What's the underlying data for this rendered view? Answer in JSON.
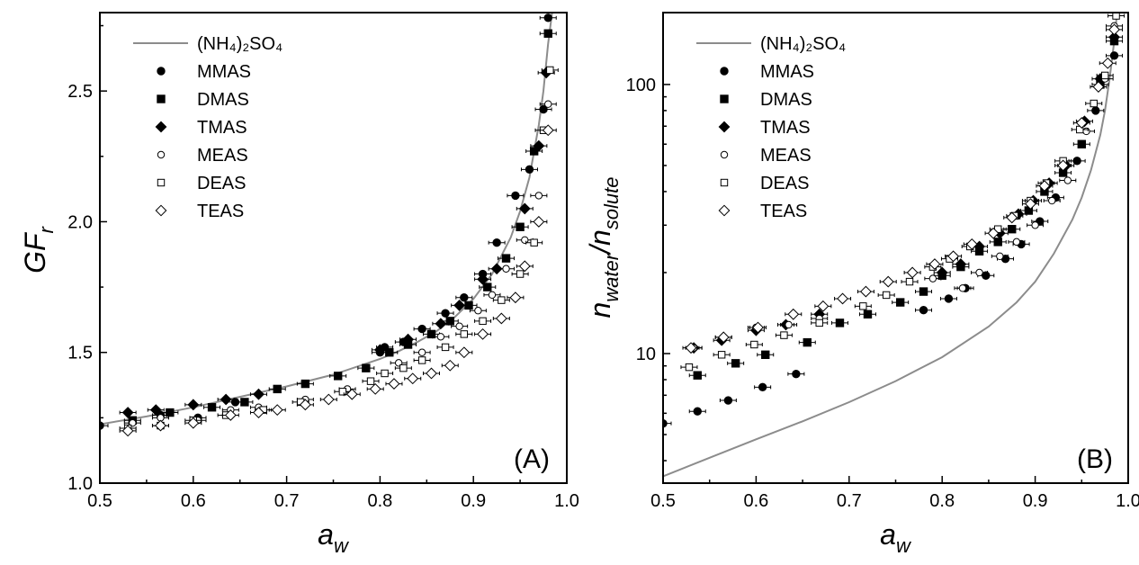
{
  "chart_data": [
    {
      "type": "scatter",
      "panel_label": "(A)",
      "xlim": [
        0.5,
        1.0
      ],
      "ylim": [
        1.0,
        2.8
      ],
      "yscale": "linear",
      "xticks": [
        "0.5",
        "0.6",
        "0.7",
        "0.8",
        "0.9",
        "1.0"
      ],
      "yticks": [
        "1.0",
        "1.5",
        "2.0",
        "2.5"
      ],
      "ytick_values": [
        1.0,
        1.5,
        2.0,
        2.5
      ],
      "xlabel": {
        "main": "a",
        "sub": "w"
      },
      "ylabel": {
        "main": "GF",
        "sub": "r"
      },
      "legend_position": "top-left",
      "legend": [
        "(NH₄)₂SO₄",
        "MMAS",
        "DMAS",
        "TMAS",
        "MEAS",
        "DEAS",
        "TEAS"
      ],
      "reference_curve": {
        "name": "(NH₄)₂SO₄",
        "color": "#8c8c8c",
        "x": [
          0.5,
          0.55,
          0.6,
          0.65,
          0.7,
          0.75,
          0.8,
          0.82,
          0.84,
          0.86,
          0.88,
          0.9,
          0.92,
          0.94,
          0.95,
          0.96,
          0.97,
          0.975,
          0.98,
          0.985
        ],
        "y": [
          1.225,
          1.255,
          1.29,
          1.33,
          1.37,
          1.415,
          1.475,
          1.505,
          1.54,
          1.58,
          1.635,
          1.705,
          1.8,
          1.94,
          2.04,
          2.17,
          2.37,
          2.5,
          2.68,
          2.82
        ]
      },
      "series": [
        {
          "name": "MMAS",
          "marker": "circle-filled",
          "x": [
            0.5,
            0.565,
            0.605,
            0.645,
            0.8,
            0.805,
            0.825,
            0.845,
            0.87,
            0.89,
            0.91,
            0.925,
            0.945,
            0.96,
            0.975,
            0.98
          ],
          "y": [
            1.22,
            1.26,
            1.25,
            1.31,
            1.5,
            1.52,
            1.54,
            1.59,
            1.65,
            1.71,
            1.8,
            1.92,
            2.1,
            2.2,
            2.43,
            2.78
          ]
        },
        {
          "name": "DMAS",
          "marker": "square-filled",
          "x": [
            0.535,
            0.575,
            0.62,
            0.655,
            0.69,
            0.72,
            0.755,
            0.785,
            0.81,
            0.83,
            0.855,
            0.875,
            0.895,
            0.915,
            0.935,
            0.95,
            0.965,
            0.98
          ],
          "y": [
            1.24,
            1.27,
            1.29,
            1.31,
            1.36,
            1.38,
            1.41,
            1.44,
            1.5,
            1.53,
            1.57,
            1.62,
            1.68,
            1.75,
            1.86,
            1.98,
            2.27,
            2.72
          ]
        },
        {
          "name": "TMAS",
          "marker": "diamond-filled",
          "x": [
            0.53,
            0.56,
            0.6,
            0.635,
            0.67,
            0.8,
            0.83,
            0.865,
            0.885,
            0.91,
            0.925,
            0.955,
            0.97,
            0.978
          ],
          "y": [
            1.27,
            1.28,
            1.3,
            1.32,
            1.34,
            1.51,
            1.55,
            1.61,
            1.68,
            1.78,
            1.82,
            2.05,
            2.29,
            2.57
          ]
        },
        {
          "name": "MEAS",
          "marker": "circle-open",
          "x": [
            0.535,
            0.565,
            0.605,
            0.64,
            0.67,
            0.72,
            0.765,
            0.82,
            0.845,
            0.865,
            0.885,
            0.905,
            0.92,
            0.935,
            0.955,
            0.97,
            0.98
          ],
          "y": [
            1.23,
            1.25,
            1.24,
            1.28,
            1.29,
            1.32,
            1.36,
            1.46,
            1.5,
            1.56,
            1.6,
            1.66,
            1.72,
            1.82,
            1.93,
            2.1,
            2.45
          ]
        },
        {
          "name": "DEAS",
          "marker": "square-open",
          "x": [
            0.53,
            0.565,
            0.6,
            0.635,
            0.675,
            0.715,
            0.76,
            0.79,
            0.805,
            0.825,
            0.845,
            0.87,
            0.89,
            0.91,
            0.93,
            0.95,
            0.965,
            0.975,
            0.982
          ],
          "y": [
            1.21,
            1.22,
            1.24,
            1.26,
            1.28,
            1.31,
            1.35,
            1.39,
            1.42,
            1.44,
            1.47,
            1.52,
            1.57,
            1.62,
            1.7,
            1.8,
            1.92,
            2.35,
            2.58
          ]
        },
        {
          "name": "TEAS",
          "marker": "diamond-open",
          "x": [
            0.53,
            0.565,
            0.6,
            0.64,
            0.67,
            0.69,
            0.72,
            0.745,
            0.77,
            0.795,
            0.815,
            0.835,
            0.855,
            0.875,
            0.89,
            0.91,
            0.93,
            0.945,
            0.955,
            0.97,
            0.98
          ],
          "y": [
            1.2,
            1.22,
            1.23,
            1.26,
            1.27,
            1.28,
            1.3,
            1.32,
            1.34,
            1.36,
            1.38,
            1.4,
            1.42,
            1.45,
            1.5,
            1.57,
            1.63,
            1.71,
            1.83,
            2.0,
            2.35
          ]
        }
      ]
    },
    {
      "type": "scatter",
      "panel_label": "(B)",
      "xlim": [
        0.5,
        1.0
      ],
      "ylim": [
        3.3,
        185
      ],
      "yscale": "log",
      "xticks": [
        "0.5",
        "0.6",
        "0.7",
        "0.8",
        "0.9",
        "1.0"
      ],
      "yticks": [
        "10",
        "100"
      ],
      "ytick_values": [
        10,
        100
      ],
      "xlabel": {
        "main": "a",
        "sub": "w"
      },
      "ylabel": {
        "main1": "n",
        "sub1": "water",
        "slash": "/",
        "main2": "n",
        "sub2": "solute"
      },
      "legend_position": "top-left",
      "legend": [
        "(NH₄)₂SO₄",
        "MMAS",
        "DMAS",
        "TMAS",
        "MEAS",
        "DEAS",
        "TEAS"
      ],
      "reference_curve": {
        "name": "(NH₄)₂SO₄",
        "color": "#8c8c8c",
        "x": [
          0.5,
          0.55,
          0.6,
          0.65,
          0.7,
          0.75,
          0.8,
          0.85,
          0.88,
          0.9,
          0.92,
          0.94,
          0.95,
          0.96,
          0.97,
          0.975,
          0.98,
          0.985,
          0.988
        ],
        "y": [
          3.5,
          4.1,
          4.8,
          5.6,
          6.6,
          7.9,
          9.7,
          12.6,
          15.5,
          18.5,
          23.5,
          31.5,
          38,
          48,
          65,
          80,
          105,
          145,
          185
        ]
      },
      "series": [
        {
          "name": "MMAS",
          "marker": "circle-filled",
          "x": [
            0.5,
            0.537,
            0.57,
            0.607,
            0.643,
            0.78,
            0.807,
            0.825,
            0.847,
            0.868,
            0.885,
            0.905,
            0.922,
            0.945,
            0.965,
            0.985
          ],
          "y": [
            5.5,
            6.1,
            6.7,
            7.5,
            8.4,
            14.5,
            16,
            17.5,
            19.5,
            22.5,
            25.5,
            31,
            38,
            52,
            80,
            128
          ]
        },
        {
          "name": "DMAS",
          "marker": "square-filled",
          "x": [
            0.537,
            0.578,
            0.61,
            0.655,
            0.69,
            0.72,
            0.755,
            0.78,
            0.8,
            0.82,
            0.84,
            0.86,
            0.875,
            0.893,
            0.91,
            0.93,
            0.95,
            0.97,
            0.985
          ],
          "y": [
            8.3,
            9.2,
            9.9,
            11,
            13,
            14,
            15.5,
            17,
            19.5,
            21,
            24,
            26,
            29,
            34,
            40,
            47,
            60,
            100,
            145
          ]
        },
        {
          "name": "TMAS",
          "marker": "diamond-filled",
          "x": [
            0.533,
            0.563,
            0.6,
            0.632,
            0.668,
            0.8,
            0.82,
            0.84,
            0.862,
            0.882,
            0.898,
            0.915,
            0.933,
            0.953,
            0.97,
            0.985
          ],
          "y": [
            10.5,
            11.2,
            12.2,
            12.8,
            14,
            20,
            21.5,
            25,
            28,
            33,
            37,
            43,
            50,
            73,
            105,
            150
          ]
        },
        {
          "name": "MEAS",
          "marker": "circle-open",
          "x": [
            0.533,
            0.565,
            0.6,
            0.635,
            0.668,
            0.79,
            0.822,
            0.84,
            0.862,
            0.88,
            0.9,
            0.918,
            0.935,
            0.955,
            0.975,
            0.985
          ],
          "y": [
            10.5,
            11.5,
            12.5,
            12.8,
            13.5,
            19,
            17.5,
            20,
            23,
            26,
            30,
            37,
            44,
            67,
            105,
            165
          ]
        },
        {
          "name": "DEAS",
          "marker": "square-open",
          "x": [
            0.528,
            0.563,
            0.598,
            0.63,
            0.668,
            0.715,
            0.74,
            0.765,
            0.79,
            0.808,
            0.83,
            0.86,
            0.878,
            0.895,
            0.912,
            0.93,
            0.948,
            0.963,
            0.975,
            0.987
          ],
          "y": [
            8.9,
            9.9,
            10.8,
            11.7,
            13,
            15,
            16.5,
            18.5,
            21,
            22.5,
            25,
            29,
            32.5,
            37,
            43,
            52,
            68,
            85,
            108,
            180
          ]
        },
        {
          "name": "TEAS",
          "marker": "diamond-open",
          "x": [
            0.53,
            0.565,
            0.602,
            0.64,
            0.672,
            0.693,
            0.718,
            0.742,
            0.768,
            0.792,
            0.812,
            0.832,
            0.855,
            0.875,
            0.895,
            0.91,
            0.93,
            0.95,
            0.968,
            0.978,
            0.985
          ],
          "y": [
            10.5,
            11.5,
            12.5,
            14,
            15,
            16,
            17,
            18.5,
            20,
            21.5,
            23,
            25.5,
            28,
            32,
            36,
            42,
            50,
            72,
            98,
            120,
            160
          ]
        }
      ]
    }
  ]
}
